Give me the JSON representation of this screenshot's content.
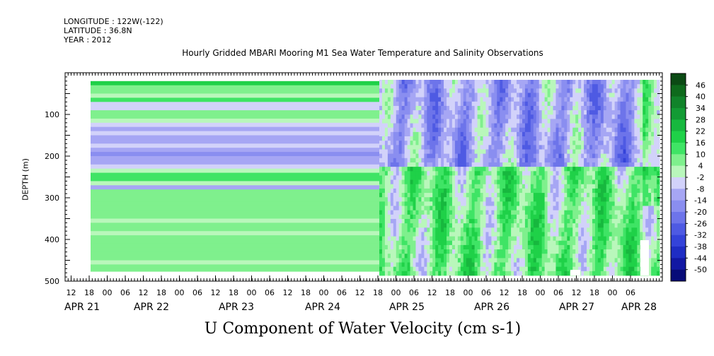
{
  "meta": {
    "longitude": "LONGITUDE : 122W(-122)",
    "latitude": "LATITUDE : 36.8N",
    "year": "YEAR : 2012"
  },
  "chart_data": {
    "type": "heatmap",
    "title": "Hourly Gridded MBARI Mooring M1 Sea Water Temperature and Salinity Observations",
    "xlabel": "U Component of Water Velocity (cm s-1)",
    "ylabel": "DEPTH (m)",
    "y_ticks": [
      "100",
      "200",
      "300",
      "400",
      "500"
    ],
    "ylim": [
      500,
      0
    ],
    "hour_ticks": [
      "12",
      "18",
      "00",
      "06",
      "12",
      "18",
      "00",
      "06",
      "12",
      "18",
      "00",
      "06",
      "12",
      "18",
      "00",
      "06",
      "12",
      "18",
      "00",
      "06",
      "12",
      "18",
      "00",
      "06",
      "12",
      "18",
      "00",
      "06",
      "12",
      "18",
      "00",
      "06"
    ],
    "day_labels": [
      "APR 21",
      "APR 22",
      "APR 23",
      "APR 24",
      "APR 25",
      "APR 26",
      "APR 27",
      "APR 28"
    ],
    "colorbar_labels": [
      "46",
      "40",
      "34",
      "28",
      "22",
      "16",
      "10",
      "4",
      "-2",
      "-8",
      "-14",
      "-20",
      "-26",
      "-32",
      "-38",
      "-44",
      "-50"
    ],
    "colorbar_colors": [
      "#0b4a14",
      "#0e6a1c",
      "#11832a",
      "#139b34",
      "#17b83e",
      "#1fd148",
      "#3fe465",
      "#7ff08d",
      "#b9f7bb",
      "#d2d2fa",
      "#a6a6f4",
      "#8a8ef0",
      "#6d74ea",
      "#4e5ae3",
      "#3443d9",
      "#1f2dc4",
      "#1218a3",
      "#070b78"
    ],
    "series": [
      {
        "period": "APR 21 18:00 - APR 25 03:00",
        "depth": [
          25,
          35,
          45,
          55,
          65,
          75,
          85,
          95,
          105,
          115,
          125,
          135,
          145,
          155,
          165,
          175,
          185,
          195,
          205,
          215,
          225,
          235,
          245,
          255,
          265,
          275,
          285,
          295,
          305,
          315,
          325,
          335,
          345,
          355,
          365,
          375,
          385,
          395,
          405,
          415,
          425,
          435,
          445,
          455,
          465,
          475
        ],
        "u": [
          16,
          8,
          4,
          -2,
          10,
          -6,
          -6,
          4,
          8,
          2,
          -6,
          -10,
          -8,
          -12,
          -10,
          -8,
          -14,
          -16,
          -14,
          -10,
          -8,
          2,
          12,
          14,
          2,
          -14,
          4,
          8,
          8,
          6,
          4,
          8,
          6,
          2,
          6,
          4,
          2,
          4,
          6,
          4,
          4,
          6,
          4,
          2,
          4,
          6
        ]
      }
    ]
  }
}
